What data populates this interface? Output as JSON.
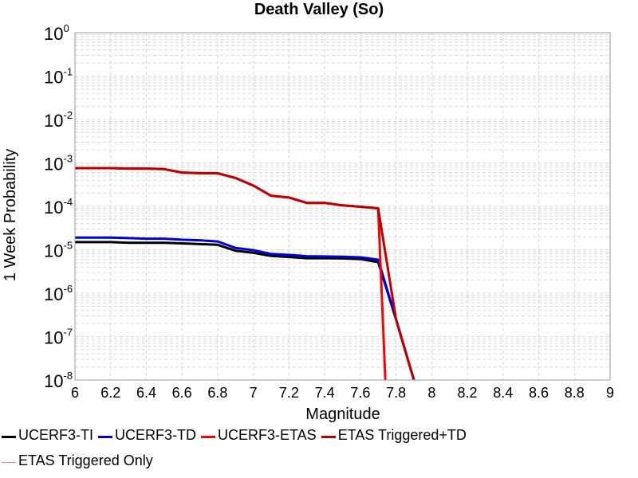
{
  "chart_data": {
    "type": "line",
    "title": "Death Valley (So)",
    "xlabel": "Magnitude",
    "ylabel": "1 Week Probability",
    "xlim": [
      6,
      9
    ],
    "ylim": [
      1e-08,
      1
    ],
    "yscale": "log",
    "grid": true,
    "legend_position": "bottom",
    "x_ticks": [
      "6",
      "6.2",
      "6.4",
      "6.6",
      "6.8",
      "7",
      "7.2",
      "7.4",
      "7.6",
      "7.8",
      "8",
      "8.2",
      "8.4",
      "8.6",
      "8.8",
      "9"
    ],
    "y_ticks": [
      {
        "base": "10",
        "exp": "0"
      },
      {
        "base": "10",
        "exp": "-1"
      },
      {
        "base": "10",
        "exp": "-2"
      },
      {
        "base": "10",
        "exp": "-3"
      },
      {
        "base": "10",
        "exp": "-4"
      },
      {
        "base": "10",
        "exp": "-5"
      },
      {
        "base": "10",
        "exp": "-6"
      },
      {
        "base": "10",
        "exp": "-7"
      },
      {
        "base": "10",
        "exp": "-8"
      }
    ],
    "series": [
      {
        "name": "UCERF3-TI",
        "color": "#000000",
        "width": 3,
        "x": [
          6.0,
          6.1,
          6.2,
          6.3,
          6.4,
          6.5,
          6.6,
          6.7,
          6.8,
          6.9,
          7.0,
          7.1,
          7.2,
          7.3,
          7.4,
          7.5,
          7.6,
          7.7,
          7.8,
          7.9
        ],
        "y": [
          1.5e-05,
          1.5e-05,
          1.5e-05,
          1.45e-05,
          1.45e-05,
          1.45e-05,
          1.4e-05,
          1.35e-05,
          1.3e-05,
          9.5e-06,
          8.5e-06,
          7.2e-06,
          6.8e-06,
          6.4e-06,
          6.4e-06,
          6.3e-06,
          6.1e-06,
          5.2e-06,
          2.5e-07,
          1e-08
        ]
      },
      {
        "name": "UCERF3-TD",
        "color": "#0000dd",
        "width": 3,
        "x": [
          6.0,
          6.1,
          6.2,
          6.3,
          6.4,
          6.5,
          6.6,
          6.7,
          6.8,
          6.9,
          7.0,
          7.1,
          7.2,
          7.3,
          7.4,
          7.5,
          7.6,
          7.7,
          7.8,
          7.9
        ],
        "y": [
          1.9e-05,
          1.9e-05,
          1.9e-05,
          1.85e-05,
          1.8e-05,
          1.8e-05,
          1.7e-05,
          1.65e-05,
          1.55e-05,
          1.1e-05,
          9.8e-06,
          8e-06,
          7.6e-06,
          7.1e-06,
          7e-06,
          6.9e-06,
          6.7e-06,
          5.9e-06,
          2.5e-07,
          1e-08
        ]
      },
      {
        "name": "UCERF3-ETAS",
        "color": "#ff0000",
        "width": 3,
        "x": [
          6.0,
          6.1,
          6.2,
          6.3,
          6.4,
          6.5,
          6.6,
          6.7,
          6.8,
          6.9,
          7.0,
          7.1,
          7.2,
          7.3,
          7.4,
          7.5,
          7.6,
          7.7,
          7.74
        ],
        "y": [
          0.00076,
          0.00076,
          0.00076,
          0.00074,
          0.00074,
          0.00072,
          0.0006,
          0.00058,
          0.00058,
          0.00045,
          0.0003,
          0.000175,
          0.00016,
          0.00012,
          0.00012,
          0.000105,
          9.8e-05,
          9e-05,
          1e-08
        ]
      },
      {
        "name": "ETAS Triggered+TD",
        "color": "#c00000",
        "width": 3,
        "x": [
          6.0,
          6.1,
          6.2,
          6.3,
          6.4,
          6.5,
          6.6,
          6.7,
          6.8,
          6.9,
          7.0,
          7.1,
          7.2,
          7.3,
          7.4,
          7.5,
          7.6,
          7.7,
          7.8,
          7.9
        ],
        "y": [
          0.00076,
          0.00076,
          0.00076,
          0.00074,
          0.00074,
          0.00072,
          0.0006,
          0.00058,
          0.00058,
          0.00045,
          0.0003,
          0.000175,
          0.00016,
          0.00012,
          0.00012,
          0.000105,
          9.8e-05,
          9e-05,
          2.5e-07,
          1e-08
        ]
      },
      {
        "name": "ETAS Triggered Only",
        "color": "#ff8080",
        "width": 1,
        "x": [],
        "y": []
      }
    ]
  }
}
